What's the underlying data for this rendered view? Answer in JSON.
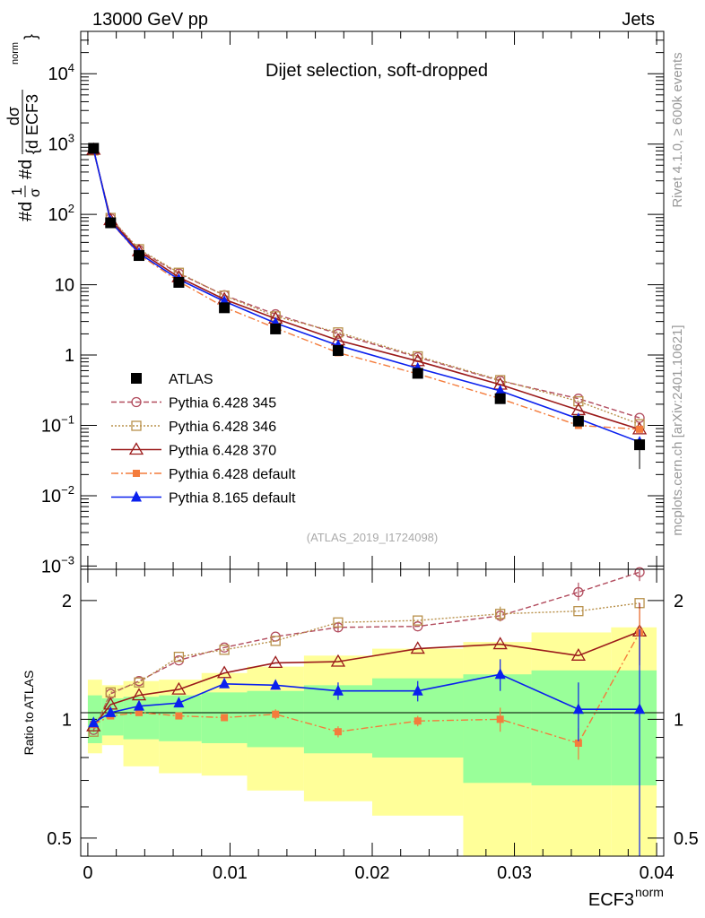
{
  "header": {
    "energy_label": "13000 GeV pp",
    "category_label": "Jets"
  },
  "side_labels": {
    "rivet": "Rivet 4.1.0, ≥ 600k events",
    "mcplots": "mcplots.cern.ch [arXiv:2401.10621]"
  },
  "colors": {
    "atlas": "#000000",
    "py345": "#b24c5e",
    "py346": "#b8904a",
    "py370": "#9b1a1a",
    "pydefault": "#f47c3c",
    "py8": "#0a20ee",
    "band_yellow": "#ffff99",
    "band_green": "#99ff99"
  },
  "chart_data": [
    {
      "type": "line",
      "title": "Dijet selection, soft-dropped",
      "analysis_tag": "(ATLAS_2019_I1724098)",
      "ylabel_parts": {
        "hash1": "#d",
        "frac_num": "1",
        "frac_den": "σ",
        "hash2": "#d",
        "num": "dσ",
        "den": "{d ECF3",
        "norm": "norm",
        "brace": "}"
      },
      "yscale": "log",
      "ylim": [
        0.0009,
        40000
      ],
      "xlim": [
        -0.0005,
        0.0405
      ],
      "y_ticks": [
        {
          "value": 0.001,
          "base": "10",
          "exp": "−3"
        },
        {
          "value": 0.01,
          "base": "10",
          "exp": "−2"
        },
        {
          "value": 0.1,
          "base": "10",
          "exp": "−1"
        },
        {
          "value": 1,
          "base": "1",
          "exp": ""
        },
        {
          "value": 10,
          "base": "10",
          "exp": ""
        },
        {
          "value": 100,
          "base": "10",
          "exp": "2"
        },
        {
          "value": 1000,
          "base": "10",
          "exp": "3"
        },
        {
          "value": 10000,
          "base": "10",
          "exp": "4"
        }
      ],
      "x": [
        0.0004,
        0.0016,
        0.0036,
        0.0064,
        0.0096,
        0.0132,
        0.0176,
        0.0232,
        0.029,
        0.0345,
        0.0388
      ],
      "series": [
        {
          "key": "atlas",
          "name": "ATLAS",
          "values": [
            870,
            76,
            26,
            10.8,
            4.7,
            2.35,
            1.16,
            0.55,
            0.24,
            0.115,
            0.053
          ],
          "err_lo": [
            0,
            0,
            0,
            0,
            0,
            0,
            0,
            0,
            0,
            0,
            0.029
          ],
          "err_hi": [
            0,
            0,
            0,
            0,
            0,
            0,
            0,
            0,
            0,
            0,
            0
          ]
        },
        {
          "key": "py345",
          "name": "Pythia 6.428 345",
          "values": [
            820,
            88,
            31,
            14.4,
            7.1,
            3.8,
            2.0,
            0.93,
            0.43,
            0.24,
            0.128
          ]
        },
        {
          "key": "py346",
          "name": "Pythia 6.428 346",
          "values": [
            810,
            89,
            32,
            14.8,
            7.0,
            3.55,
            2.1,
            0.96,
            0.44,
            0.22,
            0.104
          ]
        },
        {
          "key": "py370",
          "name": "Pythia 6.428 370",
          "values": [
            830,
            83,
            30,
            12.8,
            6.2,
            3.3,
            1.62,
            0.82,
            0.38,
            0.165,
            0.088
          ]
        },
        {
          "key": "pydefault",
          "name": "Pythia 6.428 default",
          "values": [
            840,
            78,
            27,
            11.1,
            4.8,
            2.42,
            1.08,
            0.54,
            0.24,
            0.1,
            0.088
          ]
        },
        {
          "key": "py8",
          "name": "Pythia 8.165 default",
          "values": [
            850,
            79,
            28,
            11.9,
            5.8,
            2.85,
            1.37,
            0.65,
            0.31,
            0.124,
            0.058
          ]
        }
      ]
    },
    {
      "type": "line",
      "ylabel": "Ratio to ATLAS",
      "xlabel": "ECF3",
      "xlabel_sup": "norm",
      "yscale": "log",
      "ylim": [
        0.45,
        2.4
      ],
      "xlim": [
        -0.0005,
        0.0405
      ],
      "y_ticks": [
        {
          "value": 0.5,
          "label": "0.5"
        },
        {
          "value": 1,
          "label": "1"
        },
        {
          "value": 2,
          "label": "2"
        }
      ],
      "x_ticks": [
        {
          "value": 0,
          "label": "0"
        },
        {
          "value": 0.01,
          "label": "0.01"
        },
        {
          "value": 0.02,
          "label": "0.02"
        },
        {
          "value": 0.03,
          "label": "0.03"
        },
        {
          "value": 0.04,
          "label": "0.04"
        }
      ],
      "bin_edges": [
        0.0,
        0.001,
        0.0025,
        0.005,
        0.008,
        0.0112,
        0.0152,
        0.02,
        0.0264,
        0.0312,
        0.0368,
        0.04
      ],
      "band_yellow": {
        "lo": [
          0.82,
          0.86,
          0.76,
          0.73,
          0.72,
          0.66,
          0.62,
          0.57,
          0.4,
          0.4,
          0.4
        ],
        "hi": [
          1.26,
          1.22,
          1.25,
          1.26,
          1.31,
          1.36,
          1.45,
          1.51,
          1.57,
          1.66,
          1.71
        ]
      },
      "band_green": {
        "lo": [
          0.87,
          0.91,
          0.89,
          0.88,
          0.87,
          0.85,
          0.82,
          0.8,
          0.69,
          0.68,
          0.68
        ],
        "hi": [
          1.15,
          1.13,
          1.14,
          1.15,
          1.17,
          1.18,
          1.22,
          1.27,
          1.3,
          1.33,
          1.33
        ]
      },
      "series": [
        {
          "key": "py345",
          "values": [
            0.94,
            1.16,
            1.25,
            1.41,
            1.52,
            1.62,
            1.71,
            1.72,
            1.83,
            2.1,
            2.36
          ],
          "err_lo": [
            0,
            0,
            0,
            0,
            0,
            0,
            0.04,
            0,
            0.05,
            0.1,
            0.12
          ],
          "err_hi": [
            0,
            0,
            0,
            0,
            0,
            0,
            0.04,
            0,
            0.05,
            0.12,
            0.12
          ]
        },
        {
          "key": "py346",
          "values": [
            0.93,
            1.17,
            1.24,
            1.44,
            1.5,
            1.58,
            1.76,
            1.78,
            1.85,
            1.88,
            1.97
          ],
          "err_lo": [
            0,
            0,
            0,
            0,
            0,
            0,
            0,
            0,
            0.08,
            0,
            0
          ],
          "err_hi": [
            0,
            0,
            0,
            0,
            0,
            0,
            0,
            0,
            0.08,
            0,
            0
          ]
        },
        {
          "key": "py370",
          "values": [
            0.96,
            1.09,
            1.15,
            1.19,
            1.31,
            1.39,
            1.4,
            1.51,
            1.55,
            1.45,
            1.67
          ],
          "err_lo": [
            0,
            0,
            0,
            0,
            0,
            0,
            0,
            0,
            0,
            0,
            0.3
          ],
          "err_hi": [
            0,
            0,
            0,
            0,
            0,
            0,
            0,
            0,
            0,
            0,
            0.3
          ]
        },
        {
          "key": "pydefault",
          "values": [
            0.97,
            1.02,
            1.04,
            1.02,
            1.01,
            1.03,
            0.93,
            0.99,
            1.0,
            0.87,
            1.66
          ],
          "err_lo": [
            0,
            0,
            0,
            0,
            0.02,
            0.03,
            0.03,
            0.03,
            0.07,
            0.08,
            0.25
          ],
          "err_hi": [
            0,
            0,
            0,
            0,
            0.02,
            0.03,
            0.03,
            0.03,
            0.07,
            0.08,
            0.25
          ]
        },
        {
          "key": "py8",
          "values": [
            0.98,
            1.04,
            1.08,
            1.1,
            1.23,
            1.22,
            1.18,
            1.18,
            1.3,
            1.06,
            1.06
          ],
          "err_lo": [
            0,
            0,
            0,
            0,
            0.02,
            0.03,
            0.06,
            0.07,
            0.12,
            0.18,
            0.63
          ],
          "err_hi": [
            0,
            0,
            0,
            0,
            0.02,
            0.03,
            0.06,
            0.07,
            0.12,
            0.18,
            0.63
          ]
        }
      ]
    }
  ]
}
